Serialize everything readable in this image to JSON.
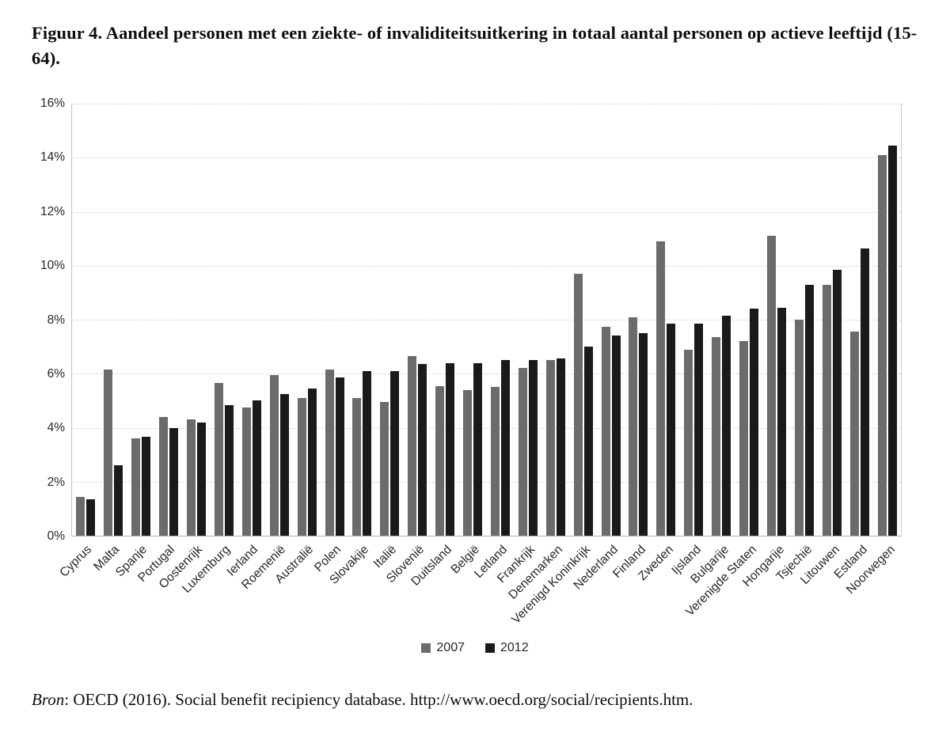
{
  "title": "Figuur 4. Aandeel personen met een ziekte- of invaliditeitsuitkering in totaal aantal personen op actieve leeftijd (15-64).",
  "source": {
    "label_italic": "Bron",
    "text": ": OECD (2016). Social benefit recipiency database. http://www.oecd.org/social/recipients.htm."
  },
  "colors": {
    "bar_2007": "#6b6b6b",
    "bar_2012": "#1a1a1a",
    "gridline": "#d9d9d9",
    "axis_line": "#c3c3c3",
    "text": "#262626"
  },
  "chart_data": {
    "type": "bar",
    "title": "Figuur 4. Aandeel personen met een ziekte- of invaliditeitsuitkering in totaal aantal personen op actieve leeftijd (15-64).",
    "xlabel": "",
    "ylabel": "",
    "ylim": [
      0,
      16
    ],
    "ytick_step": 2,
    "ytick_labels": [
      "0%",
      "2%",
      "4%",
      "6%",
      "8%",
      "10%",
      "12%",
      "14%",
      "16%"
    ],
    "grid": "horizontal-dashed",
    "legend_position": "bottom-center",
    "categories": [
      "Cyprus",
      "Malta",
      "Spanje",
      "Portugal",
      "Oostenrijk",
      "Luxemburg",
      "Ierland",
      "Roemenië",
      "Australië",
      "Polen",
      "Slovakije",
      "Italië",
      "Slovenië",
      "Duitsland",
      "België",
      "Letland",
      "Frankrijk",
      "Denemarken",
      "Verenigd Koninkrijk",
      "Nederland",
      "Finland",
      "Zweden",
      "Ijsland",
      "Bulgarije",
      "Verenigde Staten",
      "Hongarije",
      "Tsjechië",
      "Litouwen",
      "Estland",
      "Noorwegen"
    ],
    "series": [
      {
        "name": "2007",
        "color": "#6b6b6b",
        "values": [
          1.45,
          6.15,
          3.6,
          4.4,
          4.3,
          5.65,
          4.75,
          5.95,
          5.1,
          6.15,
          5.1,
          4.95,
          6.65,
          5.55,
          5.4,
          5.5,
          6.2,
          6.5,
          9.7,
          7.75,
          8.1,
          10.9,
          6.9,
          7.35,
          7.2,
          11.1,
          8.0,
          9.3,
          7.55,
          14.1
        ]
      },
      {
        "name": "2012",
        "color": "#1a1a1a",
        "values": [
          1.35,
          2.6,
          3.65,
          4.0,
          4.2,
          4.85,
          5.0,
          5.25,
          5.45,
          5.85,
          6.1,
          6.1,
          6.35,
          6.4,
          6.4,
          6.5,
          6.5,
          6.55,
          7.0,
          7.4,
          7.5,
          7.85,
          7.85,
          8.15,
          8.4,
          8.45,
          9.3,
          9.85,
          10.65,
          14.45
        ]
      }
    ]
  }
}
